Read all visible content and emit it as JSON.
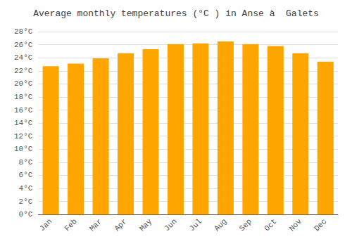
{
  "chart_data": {
    "type": "bar",
    "title": "Average monthly temperatures (°C ) in Anse à  Galets",
    "categories": [
      "Jan",
      "Feb",
      "Mar",
      "Apr",
      "May",
      "Jun",
      "Jul",
      "Aug",
      "Sep",
      "Oct",
      "Nov",
      "Dec"
    ],
    "values": [
      22.7,
      23.1,
      23.9,
      24.7,
      25.3,
      26.1,
      26.2,
      26.5,
      26.1,
      25.8,
      24.7,
      23.4
    ],
    "color": "#FFA500",
    "ylim": [
      0,
      28
    ],
    "yticks": [
      {
        "value": 0,
        "label": "0°C"
      },
      {
        "value": 2,
        "label": "2°C"
      },
      {
        "value": 4,
        "label": "4°C"
      },
      {
        "value": 6,
        "label": "6°C"
      },
      {
        "value": 8,
        "label": "8°C"
      },
      {
        "value": 10,
        "label": "10°C"
      },
      {
        "value": 12,
        "label": "12°C"
      },
      {
        "value": 14,
        "label": "14°C"
      },
      {
        "value": 16,
        "label": "16°C"
      },
      {
        "value": 18,
        "label": "18°C"
      },
      {
        "value": 20,
        "label": "20°C"
      },
      {
        "value": 22,
        "label": "22°C"
      },
      {
        "value": 24,
        "label": "24°C"
      },
      {
        "value": 26,
        "label": "26°C"
      },
      {
        "value": 28,
        "label": "28°C"
      }
    ],
    "grid": true
  }
}
